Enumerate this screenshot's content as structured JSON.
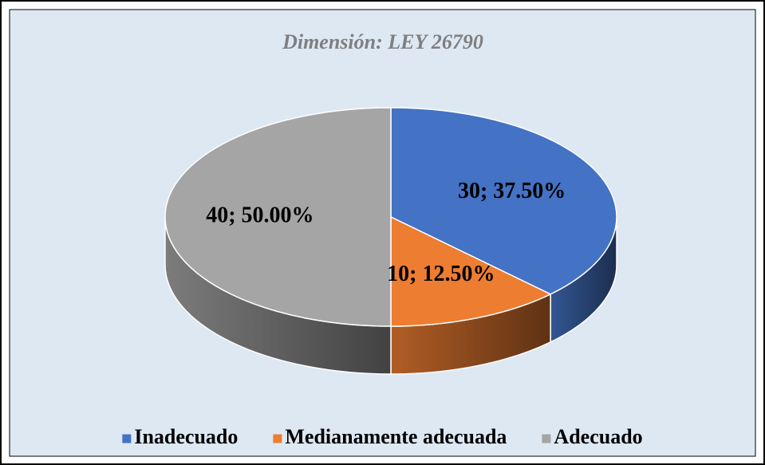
{
  "chart_data": {
    "type": "pie",
    "title": "Dimensión: LEY 26790",
    "categories": [
      "Inadecuado",
      "Medianamente adecuada",
      "Adecuado"
    ],
    "values": [
      30,
      10,
      40
    ],
    "value_labels": [
      "30; 37.50%",
      "10; 12.50%",
      "40; 50.00%"
    ],
    "colors": [
      "#4472c4",
      "#ed7d31",
      "#a5a5a5"
    ],
    "legend": "bottom"
  }
}
